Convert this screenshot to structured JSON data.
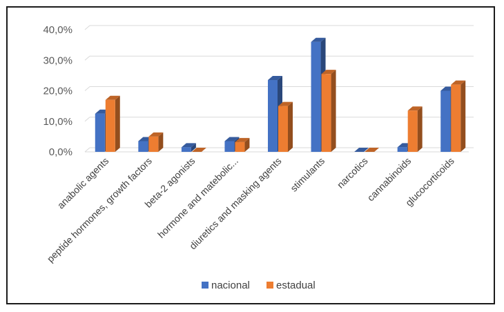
{
  "chart_data": {
    "type": "bar",
    "title": "",
    "xlabel": "",
    "ylabel": "",
    "ylim": [
      0,
      40
    ],
    "y_ticks": [
      0,
      10,
      20,
      30,
      40
    ],
    "y_tick_labels": [
      "0,0%",
      "10,0%",
      "20,0%",
      "30,0%",
      "40,0%"
    ],
    "grid": true,
    "style": "3d-clustered-columns",
    "legend_position": "bottom",
    "categories": [
      "anabolic agents",
      "peptide hormones, growth factors",
      "beta-2 agonists",
      "hormone and matebolic...",
      "diuretics and masking agents",
      "stimulants",
      "narcotics",
      "cannabinoids",
      "glucocorticoids"
    ],
    "series": [
      {
        "name": "nacional",
        "color": "#4472C4",
        "values": [
          12.5,
          3.5,
          1.5,
          3.5,
          23.5,
          36.0,
          0.0,
          1.5,
          20.0
        ]
      },
      {
        "name": "estadual",
        "color": "#ED7D31",
        "values": [
          17.0,
          5.0,
          0.0,
          3.2,
          15.0,
          25.5,
          0.0,
          13.5,
          22.0
        ]
      }
    ]
  }
}
